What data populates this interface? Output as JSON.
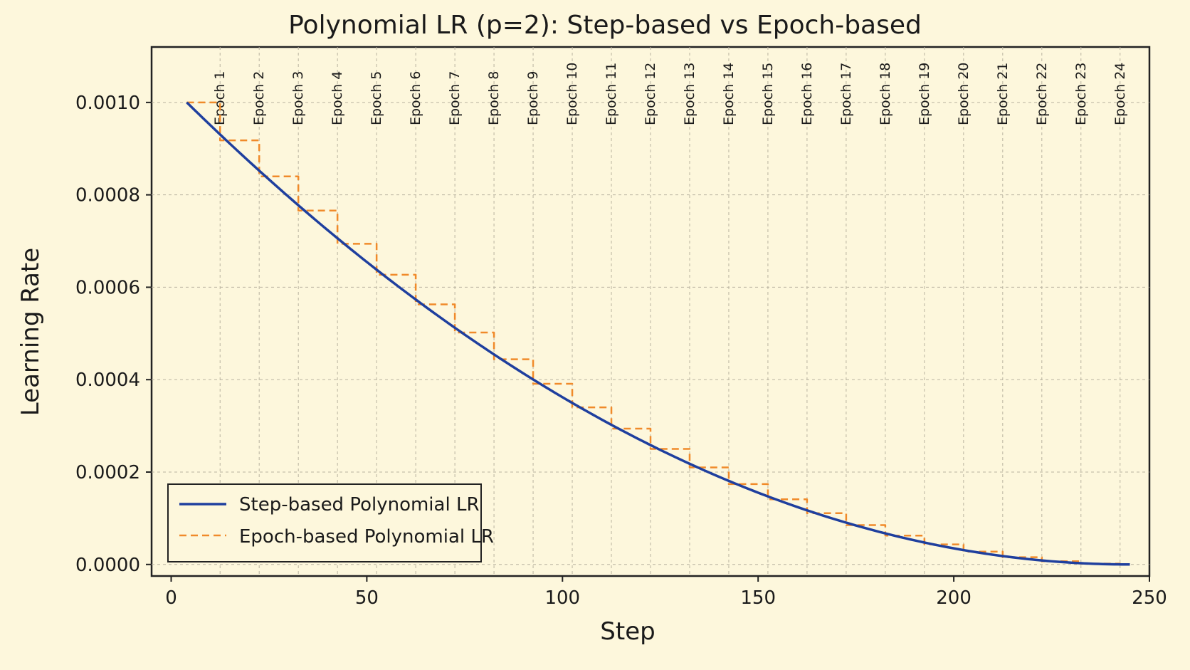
{
  "chart_data": {
    "type": "line",
    "title": "Polynomial LR (p=2): Step-based vs Epoch-based",
    "xlabel": "Step",
    "ylabel": "Learning Rate",
    "xlim": [
      -5,
      250
    ],
    "ylim": [
      -2.5e-05,
      0.00112
    ],
    "xticks": [
      0,
      50,
      100,
      150,
      200,
      250
    ],
    "yticks": [
      0.0,
      0.0002,
      0.0004,
      0.0006,
      0.0008,
      0.001
    ],
    "ytick_labels": [
      "0.0000",
      "0.0002",
      "0.0004",
      "0.0006",
      "0.0008",
      "0.0010"
    ],
    "grid": true,
    "legend_position": "bottom-left",
    "power": 2,
    "initial_lr": 0.001,
    "total_steps": 245,
    "epoch_boundaries": [
      12.5,
      22.5,
      32.5,
      42.5,
      52.5,
      62.5,
      72.5,
      82.5,
      92.5,
      102.5,
      112.5,
      122.5,
      132.5,
      142.5,
      152.5,
      162.5,
      172.5,
      182.5,
      192.5,
      202.5,
      212.5,
      222.5,
      232.5,
      242.5
    ],
    "epoch_labels": [
      "Epoch 1",
      "Epoch 2",
      "Epoch 3",
      "Epoch 4",
      "Epoch 5",
      "Epoch 6",
      "Epoch 7",
      "Epoch 8",
      "Epoch 9",
      "Epoch 10",
      "Epoch 11",
      "Epoch 12",
      "Epoch 13",
      "Epoch 14",
      "Epoch 15",
      "Epoch 16",
      "Epoch 17",
      "Epoch 18",
      "Epoch 19",
      "Epoch 20",
      "Epoch 21",
      "Epoch 22",
      "Epoch 23",
      "Epoch 24"
    ],
    "series": [
      {
        "name": "Step-based Polynomial LR",
        "style": "solid",
        "color": "#1f3f9e",
        "x": [
          4,
          20,
          40,
          60,
          80,
          100,
          120,
          140,
          160,
          180,
          200,
          220,
          245
        ],
        "y": [
          0.001,
          0.000868,
          0.000715,
          0.000576,
          0.000452,
          0.000343,
          0.000249,
          0.00017,
          0.000106,
          5.66e-05,
          2.22e-05,
          3.5e-06,
          0.0
        ]
      },
      {
        "name": "Epoch-based Polynomial LR",
        "style": "dashed",
        "color": "#f08a2a",
        "x": [
          4,
          12.5,
          12.5,
          22.5,
          22.5,
          32.5,
          32.5,
          42.5,
          42.5,
          52.5,
          52.5,
          62.5,
          62.5,
          72.5,
          72.5,
          82.5,
          82.5,
          92.5,
          92.5,
          102.5,
          102.5,
          112.5,
          112.5,
          122.5,
          122.5,
          132.5,
          132.5,
          142.5,
          142.5,
          152.5,
          152.5,
          162.5,
          162.5,
          172.5,
          172.5,
          182.5,
          182.5,
          192.5,
          192.5,
          202.5,
          202.5,
          212.5,
          212.5,
          222.5,
          222.5,
          232.5,
          232.5,
          242.5,
          242.5,
          245
        ],
        "y": [
          0.001,
          0.001,
          0.000918,
          0.000918,
          0.00084,
          0.00084,
          0.000766,
          0.000766,
          0.000694,
          0.000694,
          0.000627,
          0.000627,
          0.000563,
          0.000563,
          0.000502,
          0.000502,
          0.000444,
          0.000444,
          0.000391,
          0.000391,
          0.00034,
          0.00034,
          0.000294,
          0.000294,
          0.00025,
          0.00025,
          0.00021,
          0.00021,
          0.000174,
          0.000174,
          0.000141,
          0.000141,
          0.000111,
          0.000111,
          8.51e-05,
          8.51e-05,
          6.25e-05,
          6.25e-05,
          4.34e-05,
          4.34e-05,
          2.78e-05,
          2.78e-05,
          1.56e-05,
          1.56e-05,
          6.9e-06,
          6.9e-06,
          1.7e-06,
          1.7e-06,
          0.0,
          0.0
        ]
      }
    ]
  }
}
